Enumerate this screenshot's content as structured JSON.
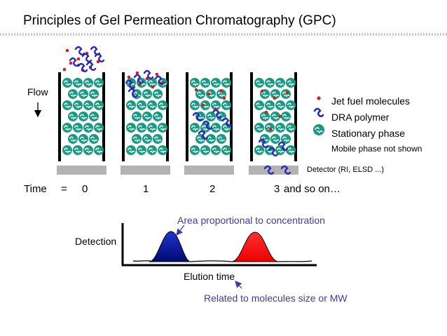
{
  "title": "Principles of Gel Permeation Chromatography (GPC)",
  "flow_label": "Flow",
  "legend": {
    "jet_fuel": "Jet fuel molecules",
    "dra": "DRA polymer",
    "stationary": "Stationary phase",
    "mobile": "Mobile phase not shown"
  },
  "detector_label": "Detector (RI, ELSD ...)",
  "time_row": {
    "label": "Time",
    "equals": "=",
    "t0": "0",
    "t1": "1",
    "t2": "2",
    "t3": "3",
    "suffix": "and so on…"
  },
  "chromatogram": {
    "area_note": "Area proportional to concentration",
    "size_note": "Related to molecules size or MW",
    "y_label": "Detection",
    "x_label": "Elution time"
  },
  "colors": {
    "bead": "#1a9a82",
    "jet_fuel": "#cc2222",
    "polymer": "#2a2ab0",
    "peak_blue": "#0a1aa0",
    "peak_red": "#ff1010",
    "annotation": "#3d3d9e"
  }
}
